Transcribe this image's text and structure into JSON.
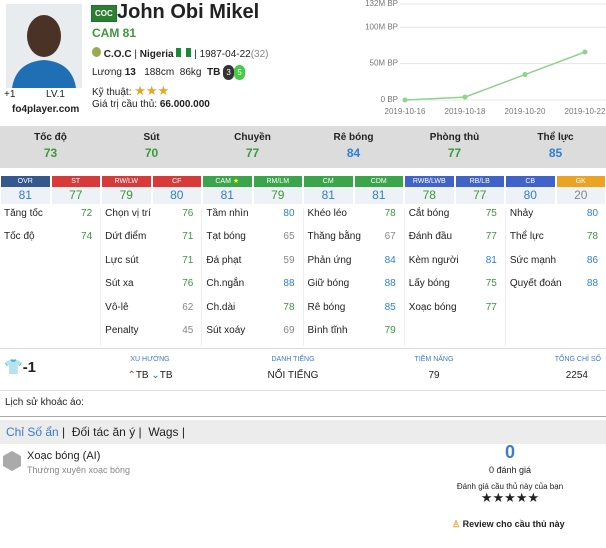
{
  "header": {
    "badge": "COC",
    "name": "John Obi Mikel",
    "position": "CAM",
    "rating": 81,
    "club": "C.O.C",
    "nation": "Nigeria",
    "birth_date": "1987-04-22",
    "age": "(32)",
    "upgrade": "+1",
    "level": "LV.1",
    "site": "fo4player.com",
    "salary_label": "Lương",
    "salary": 13,
    "height": "188cm",
    "weight": "86kg",
    "body_type": "TB",
    "weak_foot_left": 3,
    "weak_foot_right": 5,
    "skill_label": "Kỹ thuật:",
    "skill_stars": 3,
    "value_label": "Giá trị cầu thủ:",
    "value": "66.000.000"
  },
  "chart_data": {
    "type": "line",
    "categories": [
      "2019-10-16",
      "2019-10-18",
      "2019-10-20",
      "2019-10-22"
    ],
    "series": [
      {
        "name": "BP",
        "color": "#8fd38f",
        "values": [
          0,
          4000000,
          35000000,
          66000000
        ]
      }
    ],
    "ylim": [
      0,
      132000000
    ],
    "yticks": [
      {
        "value": 0,
        "label": "0 BP"
      },
      {
        "value": 50000000,
        "label": "50M BP"
      },
      {
        "value": 100000000,
        "label": "100M BP"
      },
      {
        "value": 132000000,
        "label": "132M BP"
      }
    ],
    "grid": true
  },
  "main_stats": [
    {
      "label": "Tốc độ",
      "value": 73
    },
    {
      "label": "Sút",
      "value": 70
    },
    {
      "label": "Chuyền",
      "value": 77
    },
    {
      "label": "Rê bóng",
      "value": 84
    },
    {
      "label": "Phòng thủ",
      "value": 77
    },
    {
      "label": "Thể lực",
      "value": 85
    }
  ],
  "positions": [
    {
      "label": "OVR",
      "value": 81,
      "color": "#35588f"
    },
    {
      "label": "ST",
      "value": 77,
      "color": "#d83a3a"
    },
    {
      "label": "RW/LW",
      "value": 79,
      "color": "#d83a3a"
    },
    {
      "label": "CF",
      "value": 80,
      "color": "#d83a3a"
    },
    {
      "label": "CAM",
      "value": 81,
      "color": "#3aa54a"
    },
    {
      "label": "RM/LM",
      "value": 79,
      "color": "#3aa54a"
    },
    {
      "label": "CM",
      "value": 81,
      "color": "#3aa54a"
    },
    {
      "label": "CDM",
      "value": 81,
      "color": "#3aa54a"
    },
    {
      "label": "RWB/LWB",
      "value": 78,
      "color": "#3f63c8"
    },
    {
      "label": "RB/LB",
      "value": 77,
      "color": "#3f63c8"
    },
    {
      "label": "CB",
      "value": 80,
      "color": "#3f63c8"
    },
    {
      "label": "GK",
      "value": 20,
      "color": "#e8a422"
    }
  ],
  "attributes": [
    [
      {
        "label": "Tăng tốc",
        "value": 72
      },
      {
        "label": "Tốc độ",
        "value": 74
      }
    ],
    [
      {
        "label": "Chọn vị trí",
        "value": 76
      },
      {
        "label": "Dứt điểm",
        "value": 71
      },
      {
        "label": "Lực sút",
        "value": 71
      },
      {
        "label": "Sút xa",
        "value": 76
      },
      {
        "label": "Vô-lê",
        "value": 62
      },
      {
        "label": "Penalty",
        "value": 45
      }
    ],
    [
      {
        "label": "Tầm nhìn",
        "value": 80
      },
      {
        "label": "Tạt bóng",
        "value": 65
      },
      {
        "label": "Đá phạt",
        "value": 59
      },
      {
        "label": "Ch.ngắn",
        "value": 88
      },
      {
        "label": "Ch.dài",
        "value": 78
      },
      {
        "label": "Sút xoáy",
        "value": 69
      }
    ],
    [
      {
        "label": "Khéo léo",
        "value": 78
      },
      {
        "label": "Thăng bằng",
        "value": 67
      },
      {
        "label": "Phản ứng",
        "value": 84
      },
      {
        "label": "Giữ bóng",
        "value": 88
      },
      {
        "label": "Rê bóng",
        "value": 85
      },
      {
        "label": "Bình tĩnh",
        "value": 79
      }
    ],
    [
      {
        "label": "Cắt bóng",
        "value": 75
      },
      {
        "label": "Đánh đầu",
        "value": 77
      },
      {
        "label": "Kèm người",
        "value": 81
      },
      {
        "label": "Lấy bóng",
        "value": 75
      },
      {
        "label": "Xoạc bóng",
        "value": 77
      }
    ],
    [
      {
        "label": "Nhảy",
        "value": 80
      },
      {
        "label": "Thể lực",
        "value": 78
      },
      {
        "label": "Sức mạnh",
        "value": 86
      },
      {
        "label": "Quyết đoán",
        "value": 88
      }
    ]
  ],
  "info": {
    "shirt": -1,
    "trend_label": "XU HƯỚNG",
    "trend_attack": "TB",
    "trend_defense": "TB",
    "reputation_label": "DANH TIẾNG",
    "reputation": "NỔI TIẾNG",
    "potential_label": "TIỀM NĂNG",
    "potential": 79,
    "total_label": "TỔNG CHỈ SỐ",
    "total": 2254
  },
  "history_label": "Lịch sử khoác áo:",
  "tabs": [
    "Chỉ Số ẩn",
    "Đối tác ăn ý",
    "Wags"
  ],
  "traits": [
    {
      "name": "Xoạc bóng (AI)",
      "desc": "Thường xuyên xoạc bóng"
    }
  ],
  "review": {
    "score": 0,
    "count_label": "0 đánh giá",
    "prompt": "Đánh giá cầu thủ này của bạn",
    "button": "Review cho cầu thủ này"
  }
}
